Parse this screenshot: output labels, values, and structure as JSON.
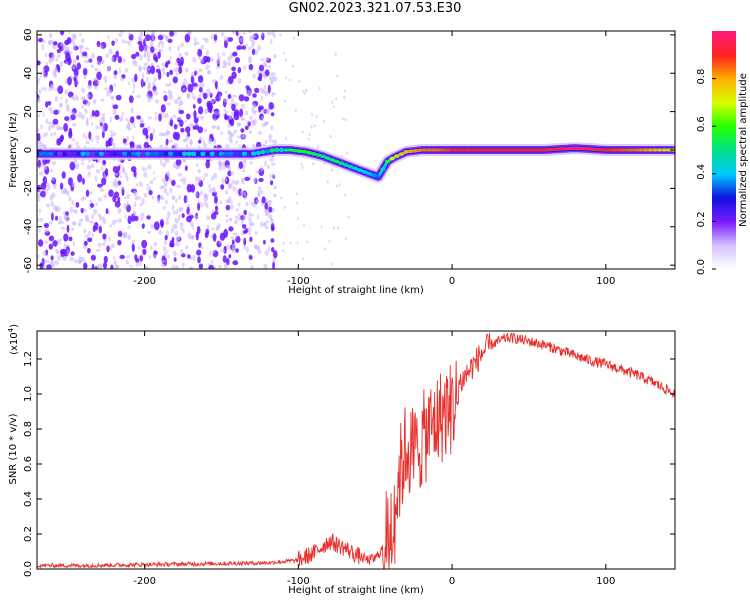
{
  "figure_title": "GN02.2023.321.07.53.E30",
  "colors": {
    "snr_line": "#e8302c",
    "ridge_dark": "#5a14d6",
    "noise": "#7a4cf0",
    "colormap": [
      "#ffffff",
      "#d7c3ff",
      "#7a1cff",
      "#1010e0",
      "#00c8ff",
      "#00e08a",
      "#22ff00",
      "#d8ff00",
      "#ffb000",
      "#ff2020",
      "#ff1a7a"
    ]
  },
  "chart_data": [
    {
      "type": "heatmap",
      "title": "GN02.2023.321.07.53.E30",
      "xlabel": "Height of straight line (km)",
      "ylabel": "Frequency (Hz)",
      "xlim": [
        -270,
        145
      ],
      "ylim": [
        -62,
        62
      ],
      "x_ticks": [
        -200,
        -100,
        0,
        100
      ],
      "x_tick_labels": [
        "-200",
        "-100",
        "0",
        "100"
      ],
      "y_ticks": [
        -60,
        -40,
        -20,
        0,
        20,
        40,
        60
      ],
      "y_tick_labels": [
        "-60",
        "-40",
        "-20",
        "0",
        "20",
        "40",
        "60"
      ],
      "grid": false,
      "noise_region_x": [
        -270,
        -115
      ],
      "ridge": {
        "x": [
          -270,
          -240,
          -200,
          -160,
          -130,
          -115,
          -105,
          -95,
          -85,
          -75,
          -65,
          -55,
          -48,
          -42,
          -38,
          -30,
          -20,
          -10,
          0,
          20,
          40,
          60,
          80,
          100,
          120,
          145
        ],
        "freq": [
          -2,
          -2,
          -2,
          -2,
          -2,
          0,
          0,
          -1,
          -3,
          -6,
          -9,
          -12,
          -14,
          -6,
          -4,
          -1,
          0,
          0,
          0,
          0,
          0,
          0,
          1,
          0,
          0,
          0
        ],
        "normalized_amplitude": [
          0.25,
          0.3,
          0.3,
          0.35,
          0.3,
          0.45,
          0.55,
          0.6,
          0.5,
          0.55,
          0.45,
          0.4,
          0.35,
          0.6,
          0.75,
          0.8,
          0.85,
          0.85,
          0.9,
          0.9,
          0.92,
          0.9,
          1.0,
          0.9,
          0.85,
          0.75
        ]
      },
      "colorbar": {
        "label": "Normalized spectral amplitude",
        "range": [
          0,
          1
        ],
        "ticks": [
          0.0,
          0.2,
          0.4,
          0.6,
          0.8
        ],
        "tick_labels": [
          "0.0",
          "0.2",
          "0.4",
          "0.6",
          "0.8"
        ]
      }
    },
    {
      "type": "line",
      "xlabel": "Height of straight line (km)",
      "ylabel": "SNR (10 * v/v)",
      "y_scale_label": "(x10",
      "y_scale_exponent": "4",
      "y_scale_suffix": ")",
      "xlim": [
        -270,
        145
      ],
      "ylim": [
        0,
        1.36
      ],
      "x_ticks": [
        -200,
        -100,
        0,
        100
      ],
      "x_tick_labels": [
        "-200",
        "-100",
        "0",
        "100"
      ],
      "y_ticks": [
        0.0,
        0.2,
        0.4,
        0.6,
        0.8,
        1.0,
        1.2
      ],
      "y_tick_labels": [
        "0.0",
        "0.2",
        "0.4",
        "0.6",
        "0.8",
        "1.0",
        "1.2"
      ],
      "grid": false,
      "series": [
        {
          "x": [
            -270,
            -240,
            -200,
            -160,
            -120,
            -100,
            -90,
            -80,
            -70,
            -60,
            -55,
            -50,
            -45,
            -40,
            -37,
            -34,
            -30,
            -25,
            -20,
            -15,
            -10,
            -5,
            0,
            5,
            10,
            15,
            20,
            25,
            30,
            35,
            40,
            45,
            50,
            60,
            70,
            80,
            90,
            100,
            110,
            120,
            130,
            145
          ],
          "y": [
            0.02,
            0.02,
            0.025,
            0.03,
            0.035,
            0.05,
            0.09,
            0.16,
            0.12,
            0.07,
            0.05,
            0.06,
            0.12,
            0.3,
            0.45,
            0.6,
            0.75,
            0.72,
            0.78,
            0.85,
            0.9,
            0.95,
            0.98,
            1.06,
            1.12,
            1.18,
            1.24,
            1.28,
            1.3,
            1.32,
            1.32,
            1.31,
            1.3,
            1.28,
            1.25,
            1.22,
            1.19,
            1.17,
            1.14,
            1.11,
            1.07,
            1.0
          ]
        }
      ]
    }
  ]
}
